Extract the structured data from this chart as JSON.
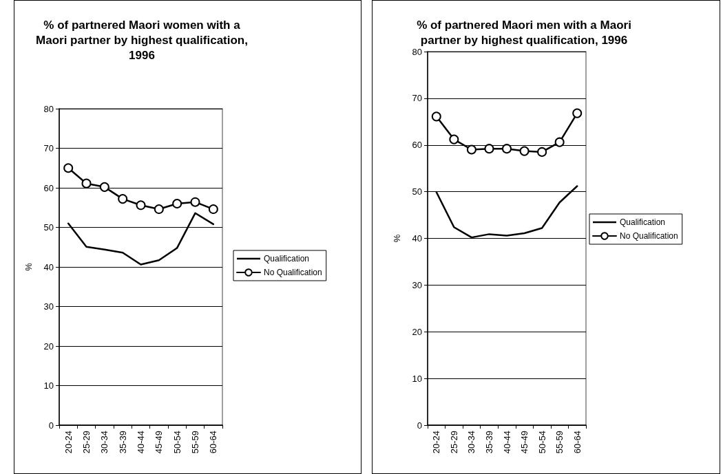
{
  "chart_data": [
    {
      "type": "line",
      "title": "% of partnered Maori women with a Maori partner by highest qualification, 1996",
      "ylabel": "%",
      "categories": [
        "20-24",
        "25-29",
        "30-34",
        "35-39",
        "40-44",
        "45-49",
        "50-54",
        "55-59",
        "60-64"
      ],
      "ylim": [
        0,
        80
      ],
      "yticks": [
        0,
        10,
        20,
        30,
        40,
        50,
        60,
        70,
        80
      ],
      "grid": "y",
      "legend": "right",
      "line_style": "solid",
      "series": [
        {
          "name": "Qualification",
          "color": "#000000",
          "marker": "none",
          "values": [
            51,
            45.1,
            44.4,
            43.6,
            40.6,
            41.7,
            44.8,
            53.6,
            50.8
          ]
        },
        {
          "name": "No Qualification",
          "color": "#000000",
          "marker": "circle",
          "values": [
            65,
            61.1,
            60.2,
            57.2,
            55.6,
            54.6,
            56,
            56.4,
            54.6
          ]
        }
      ]
    },
    {
      "type": "line",
      "title": "% of partnered Maori men with a Maori partner by highest qualification, 1996",
      "ylabel": "%",
      "categories": [
        "20-24",
        "25-29",
        "30-34",
        "35-39",
        "40-44",
        "45-49",
        "50-54",
        "55-59",
        "60-64"
      ],
      "ylim": [
        0,
        80
      ],
      "yticks": [
        0,
        10,
        20,
        30,
        40,
        50,
        60,
        70,
        80
      ],
      "grid": "y",
      "legend": "right",
      "line_style": "solid",
      "series": [
        {
          "name": "Qualification",
          "color": "#000000",
          "marker": "none",
          "values": [
            49.9,
            42.4,
            40.2,
            40.9,
            40.6,
            41.1,
            42.2,
            47.7,
            51.2
          ]
        },
        {
          "name": "No Qualification",
          "color": "#000000",
          "marker": "circle",
          "values": [
            66.1,
            61.2,
            59,
            59.2,
            59.2,
            58.7,
            58.5,
            60.6,
            66.8
          ]
        }
      ]
    }
  ]
}
